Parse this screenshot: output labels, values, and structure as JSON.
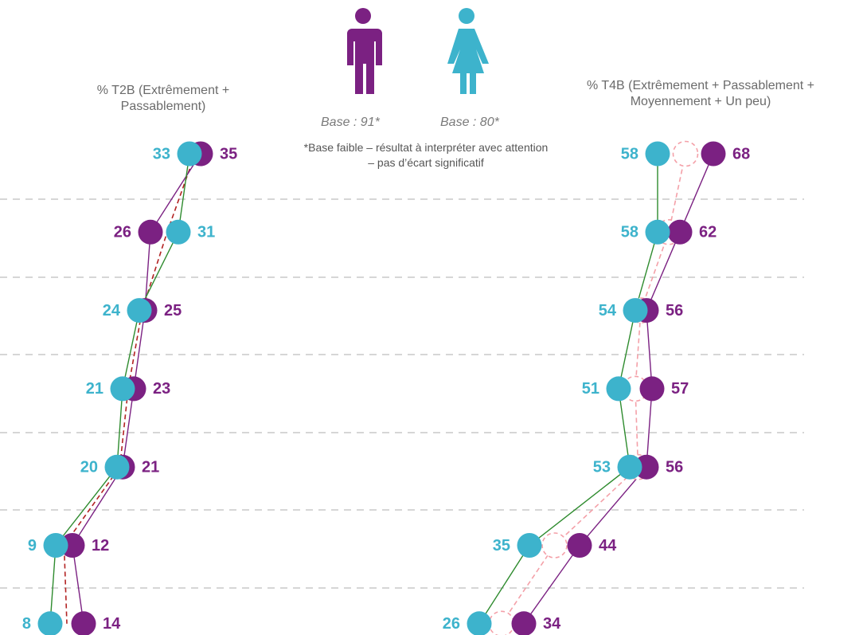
{
  "groups": [
    {
      "base": "Base : 91*",
      "color": "#7b2182"
    },
    {
      "base": "Base : 80*",
      "color": "#3db3cc"
    }
  ],
  "note": "*Base faible – résultat à interpréter avec attention – pas d’écart significatif",
  "chart_data": [
    {
      "type": "dotline",
      "title": "% T2B (Extrêmement + Passablement)",
      "xlim": [
        0,
        40
      ],
      "series": [
        {
          "color": "#b22222",
          "marker": "none",
          "dashed": true,
          "values": [
            34,
            29,
            24.5,
            22,
            20.5,
            10.5,
            11
          ]
        },
        {
          "color": "#7b2182",
          "line_color": "#7b2182",
          "marker": "dot",
          "values": [
            35,
            26,
            25,
            23,
            21,
            12,
            14
          ]
        },
        {
          "color": "#3db3cc",
          "line_color": "#2e8b2e",
          "marker": "dot",
          "values": [
            33,
            31,
            24,
            21,
            20,
            9,
            8
          ]
        }
      ]
    },
    {
      "type": "dotline",
      "title": "% T4B (Extrêmement + Passablement + Moyennement + Un peu)",
      "xlim": [
        20,
        80
      ],
      "series": [
        {
          "color": "#f4a0a8",
          "marker": "hollow",
          "dashed": true,
          "values": [
            63,
            60,
            55,
            54,
            54.5,
            39.5,
            30
          ]
        },
        {
          "color": "#7b2182",
          "line_color": "#7b2182",
          "marker": "dot",
          "values": [
            68,
            62,
            56,
            57,
            56,
            44,
            34
          ]
        },
        {
          "color": "#3db3cc",
          "line_color": "#2e8b2e",
          "marker": "dot",
          "values": [
            58,
            58,
            54,
            51,
            53,
            35,
            26
          ]
        }
      ]
    }
  ]
}
